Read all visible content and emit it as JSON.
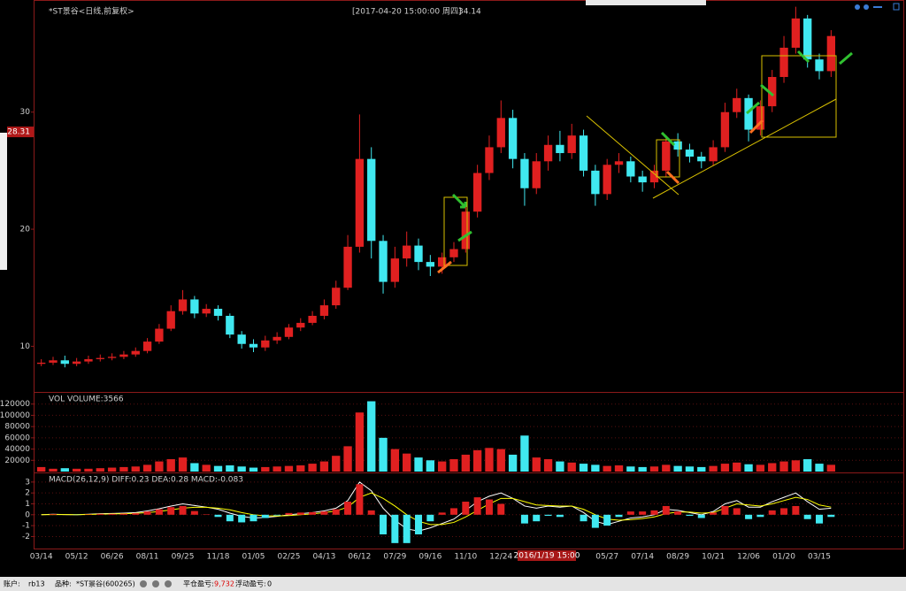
{
  "chart_data": [
    {
      "type": "candlestick",
      "title": "*ST景谷<日线,前复权>",
      "subtitle": "[2017-04-20  15:00:00 周四]",
      "annotation": "34.14",
      "price_marker": 28.31,
      "categories": [
        "03/14",
        null,
        null,
        "05/12",
        null,
        null,
        "06/26",
        null,
        null,
        "08/11",
        null,
        null,
        "09/25",
        null,
        null,
        "11/18",
        null,
        null,
        "01/05",
        null,
        null,
        "02/25",
        null,
        null,
        "04/13",
        null,
        null,
        "06/12",
        null,
        null,
        "07/29",
        null,
        null,
        "09/16",
        null,
        null,
        "11/10",
        null,
        null,
        "12/24",
        null,
        null,
        null,
        null,
        null,
        null,
        null,
        null,
        "05/27",
        null,
        null,
        "07/14",
        null,
        null,
        "08/29",
        null,
        null,
        "10/21",
        null,
        null,
        "12/06",
        null,
        null,
        "01/20",
        null,
        null,
        "03/15",
        null
      ],
      "open": [
        8.5,
        8.6,
        8.8,
        8.5,
        8.7,
        8.9,
        9.0,
        9.1,
        9.3,
        9.6,
        10.4,
        11.5,
        13.0,
        14.0,
        12.8,
        13.2,
        12.6,
        11.0,
        10.2,
        9.9,
        10.5,
        10.8,
        11.6,
        12.0,
        12.6,
        13.5,
        15.0,
        18.5,
        26.0,
        19.0,
        15.5,
        17.5,
        18.6,
        17.2,
        16.8,
        17.6,
        18.3,
        21.5,
        24.8,
        27.0,
        29.5,
        26.0,
        23.5,
        25.8,
        27.2,
        26.5,
        28.0,
        25.0,
        23.0,
        25.5,
        25.8,
        24.5,
        24.0,
        25.0,
        27.5,
        26.8,
        26.2,
        25.8,
        27.0,
        30.0,
        31.2,
        28.5,
        30.5,
        33.0,
        35.5,
        38.0,
        34.5,
        33.5
      ],
      "high": [
        8.9,
        9.1,
        9.2,
        9.0,
        9.2,
        9.3,
        9.4,
        9.6,
        9.9,
        10.7,
        11.9,
        13.5,
        14.8,
        14.3,
        13.6,
        13.5,
        12.8,
        11.3,
        10.6,
        10.9,
        11.2,
        11.9,
        12.4,
        13.0,
        14.0,
        15.6,
        19.5,
        29.8,
        27.0,
        19.5,
        18.5,
        19.8,
        19.2,
        17.8,
        18.0,
        18.9,
        22.3,
        25.5,
        28.0,
        31.0,
        30.2,
        26.5,
        26.5,
        28.0,
        28.4,
        29.0,
        28.5,
        25.5,
        26.0,
        26.5,
        26.2,
        25.0,
        25.5,
        28.0,
        28.2,
        27.3,
        26.6,
        27.6,
        30.8,
        32.0,
        31.5,
        31.0,
        33.6,
        36.5,
        39.0,
        38.3,
        35.0,
        37.0
      ],
      "low": [
        8.3,
        8.4,
        8.2,
        8.3,
        8.5,
        8.7,
        8.8,
        8.9,
        9.1,
        9.4,
        10.2,
        11.3,
        12.7,
        12.4,
        12.5,
        12.2,
        10.7,
        9.8,
        9.5,
        9.6,
        10.2,
        10.6,
        11.3,
        11.8,
        12.3,
        13.2,
        14.8,
        18.0,
        17.5,
        14.5,
        15.0,
        16.8,
        16.5,
        16.0,
        16.2,
        17.2,
        18.0,
        21.0,
        24.2,
        26.5,
        25.2,
        22.0,
        23.0,
        25.0,
        25.8,
        26.0,
        24.5,
        22.0,
        22.5,
        24.8,
        24.0,
        23.2,
        23.5,
        24.5,
        26.2,
        25.7,
        25.2,
        25.4,
        26.6,
        29.5,
        27.5,
        28.0,
        30.0,
        32.5,
        35.0,
        33.8,
        32.8,
        33.0
      ],
      "close": [
        8.6,
        8.8,
        8.5,
        8.7,
        8.9,
        9.0,
        9.1,
        9.3,
        9.6,
        10.4,
        11.5,
        13.0,
        14.0,
        12.8,
        13.2,
        12.6,
        11.0,
        10.2,
        9.9,
        10.5,
        10.8,
        11.6,
        12.0,
        12.6,
        13.5,
        15.0,
        18.5,
        26.0,
        19.0,
        15.5,
        17.5,
        18.6,
        17.2,
        16.8,
        17.6,
        18.3,
        21.5,
        24.8,
        27.0,
        29.5,
        26.0,
        23.5,
        25.8,
        27.2,
        26.5,
        28.0,
        25.0,
        23.0,
        25.5,
        25.8,
        24.5,
        24.0,
        25.0,
        27.5,
        26.8,
        26.2,
        25.8,
        27.0,
        30.0,
        31.2,
        28.5,
        30.5,
        33.0,
        35.5,
        38.0,
        34.5,
        33.5,
        36.5
      ],
      "up_color": "#e02020",
      "down_color": "#40e8f0",
      "ylim": [
        6.1,
        39.5
      ],
      "yticks": [
        10,
        20,
        30
      ],
      "grid": false
    },
    {
      "type": "bar",
      "title": "VOL  VOLUME:3566",
      "values": [
        8000,
        5000,
        6000,
        5000,
        5000,
        6000,
        7000,
        8000,
        9000,
        12000,
        18000,
        22000,
        25000,
        15000,
        12000,
        10000,
        11000,
        9000,
        7000,
        8000,
        9000,
        10000,
        11000,
        14000,
        18000,
        28000,
        45000,
        105000,
        125000,
        60000,
        40000,
        32000,
        25000,
        20000,
        18000,
        22000,
        30000,
        38000,
        42000,
        40000,
        30000,
        64000,
        25000,
        22000,
        18000,
        16000,
        14000,
        12000,
        10000,
        11000,
        9000,
        8000,
        9000,
        12000,
        10000,
        9000,
        8000,
        10000,
        14000,
        16000,
        13000,
        12000,
        15000,
        18000,
        20000,
        22000,
        14000,
        12000
      ],
      "ylim": [
        0,
        140000
      ],
      "yticks": [
        20000,
        40000,
        60000,
        80000,
        100000,
        120000
      ],
      "grid": true
    },
    {
      "type": "macd",
      "title": "MACD(26,12,9)  DIFF:0.23 DEA:0.28 MACD:-0.083",
      "series": [
        {
          "color": "#ffffff",
          "values": [
            0.0,
            0.05,
            0.02,
            0.0,
            0.05,
            0.1,
            0.12,
            0.15,
            0.2,
            0.35,
            0.55,
            0.8,
            1.0,
            0.85,
            0.7,
            0.5,
            0.15,
            -0.15,
            -0.3,
            -0.25,
            -0.15,
            0.0,
            0.1,
            0.2,
            0.35,
            0.6,
            1.3,
            3.0,
            2.2,
            0.6,
            -0.5,
            -1.3,
            -1.5,
            -1.2,
            -0.8,
            -0.4,
            0.4,
            1.2,
            1.7,
            2.0,
            1.5,
            0.8,
            0.6,
            0.8,
            0.7,
            0.8,
            0.2,
            -0.6,
            -0.9,
            -0.6,
            -0.3,
            -0.2,
            0.0,
            0.5,
            0.4,
            0.2,
            0.0,
            0.3,
            1.0,
            1.3,
            0.7,
            0.7,
            1.2,
            1.6,
            2.0,
            1.2,
            0.5,
            0.6
          ]
        },
        {
          "color": "#ffff00",
          "values": [
            0.0,
            0.02,
            0.02,
            0.01,
            0.03,
            0.06,
            0.08,
            0.1,
            0.13,
            0.2,
            0.3,
            0.45,
            0.6,
            0.68,
            0.68,
            0.6,
            0.45,
            0.2,
            0.0,
            -0.1,
            -0.12,
            -0.08,
            0.0,
            0.08,
            0.2,
            0.35,
            0.7,
            1.6,
            2.0,
            1.5,
            0.8,
            0.0,
            -0.6,
            -0.9,
            -0.9,
            -0.7,
            -0.2,
            0.4,
            1.0,
            1.5,
            1.5,
            1.2,
            0.9,
            0.85,
            0.8,
            0.8,
            0.5,
            0.0,
            -0.4,
            -0.5,
            -0.45,
            -0.35,
            -0.2,
            0.1,
            0.25,
            0.25,
            0.15,
            0.2,
            0.6,
            1.0,
            0.9,
            0.8,
            1.0,
            1.3,
            1.6,
            1.4,
            0.9,
            0.7
          ]
        },
        {
          "values": [
            0.0,
            0.06,
            0.0,
            -0.02,
            0.04,
            0.08,
            0.08,
            0.1,
            0.14,
            0.3,
            0.5,
            0.7,
            0.8,
            0.34,
            0.04,
            -0.2,
            -0.6,
            -0.7,
            -0.6,
            -0.3,
            -0.06,
            0.16,
            0.2,
            0.24,
            0.3,
            0.5,
            1.2,
            2.8,
            0.4,
            -1.8,
            -2.6,
            -2.6,
            -1.8,
            -0.6,
            0.2,
            0.6,
            1.2,
            1.6,
            1.4,
            1.0,
            0.0,
            -0.8,
            -0.6,
            -0.1,
            -0.2,
            0.0,
            -0.6,
            -1.2,
            -1.0,
            -0.2,
            0.3,
            0.3,
            0.4,
            0.8,
            0.3,
            -0.1,
            -0.3,
            0.2,
            0.8,
            0.6,
            -0.4,
            -0.2,
            0.4,
            0.6,
            0.8,
            -0.4,
            -0.8,
            -0.2
          ]
        }
      ],
      "ylim": [
        -3.1,
        3.8
      ],
      "yticks": [
        -2,
        -1,
        0,
        1,
        2,
        3
      ],
      "grid": true
    }
  ],
  "cursor_label": "2016/1/19 15:00",
  "status_bar": {
    "account_label": "账户:",
    "account": "rb13",
    "symbol_label": "品种:",
    "symbol": "*ST景谷(600265)",
    "closed_pl_label": "平仓盈亏:",
    "closed_pl": "9,732",
    "floating_pl_label": "浮动盈亏:",
    "floating_pl": "0"
  }
}
